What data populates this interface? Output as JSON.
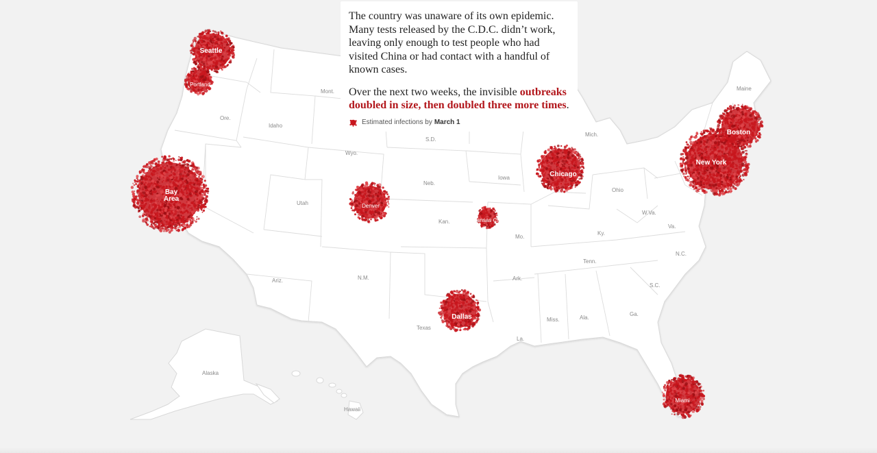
{
  "narrative": {
    "paragraph1": "The country was unaware of its own epidemic. Many tests released by the C.D.C. didn’t work, leaving only enough to test people who had visited China or had contact with a handful of known cases.",
    "paragraph2_before": "Over the next two weeks, the invisible ",
    "paragraph2_highlight": "outbreaks doubled in size, then doubled three more times",
    "paragraph2_after": "."
  },
  "legend": {
    "label": "Estimated infections by",
    "date": "March 1"
  },
  "colors": {
    "outbreak": "#c8161d",
    "land": "#ffffff",
    "background": "#f2f2f2",
    "state_border": "#d4d4d4",
    "highlight_text": "#b2161b"
  },
  "state_labels": [
    "Mont.",
    "Ore.",
    "Idaho",
    "Wyo.",
    "S.D.",
    "Nebr.",
    "Neb.",
    "Iowa",
    "Mich.",
    "Maine",
    "Utah",
    "Kan.",
    "Mo.",
    "Ohio",
    "W.Va.",
    "Va.",
    "Ky.",
    "N.C.",
    "Tenn.",
    "S.C.",
    "Ariz.",
    "N.M.",
    "Ark.",
    "Miss.",
    "Ala.",
    "Ga.",
    "Texas",
    "La.",
    "Alaska",
    "Hawaii"
  ],
  "outbreaks": [
    {
      "city": "Seattle",
      "relative_size": "medium"
    },
    {
      "city": "Portland",
      "relative_size": "small"
    },
    {
      "city": "Bay Area",
      "relative_size": "large"
    },
    {
      "city": "Denver",
      "relative_size": "medium"
    },
    {
      "city": "Kansas City",
      "relative_size": "small"
    },
    {
      "city": "Chicago",
      "relative_size": "medium"
    },
    {
      "city": "Dallas",
      "relative_size": "medium"
    },
    {
      "city": "New York",
      "relative_size": "large"
    },
    {
      "city": "Boston",
      "relative_size": "medium"
    },
    {
      "city": "Miami",
      "relative_size": "medium"
    }
  ]
}
